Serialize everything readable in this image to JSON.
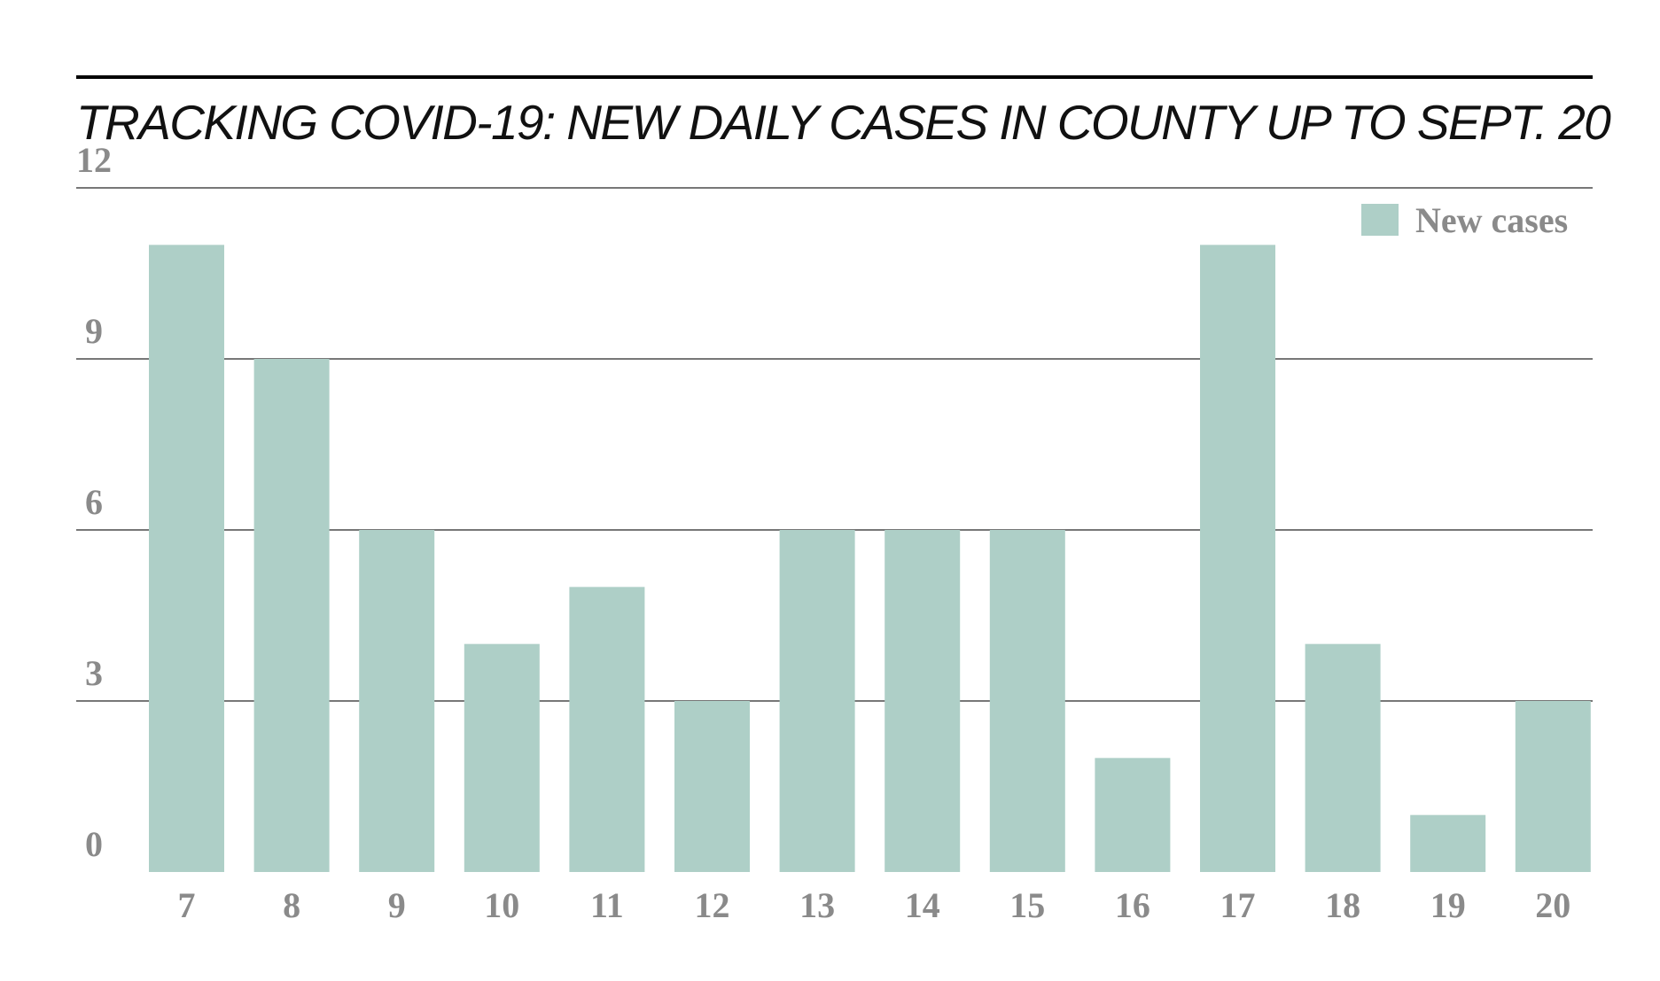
{
  "chart_data": {
    "type": "bar",
    "title": "TRACKING COVID-19: NEW DAILY CASES IN COUNTY UP TO SEPT. 20",
    "xlabel": "",
    "ylabel": "",
    "categories": [
      "7",
      "8",
      "9",
      "10",
      "11",
      "12",
      "13",
      "14",
      "15",
      "16",
      "17",
      "18",
      "19",
      "20"
    ],
    "series": [
      {
        "name": "New cases",
        "values": [
          11,
          9,
          6,
          4,
          5,
          3,
          6,
          6,
          6,
          2,
          11,
          4,
          1,
          3
        ],
        "color": "#aecfc7"
      }
    ],
    "ylim": [
      0,
      12
    ],
    "yticks": [
      "0",
      "3",
      "6",
      "9",
      "12"
    ],
    "grid": true,
    "legend_position": "top-right",
    "colors": {
      "bar": "#aecfc7",
      "tick_text": "#8a8a8a",
      "gridline": "#4a4a4a",
      "title": "#111111"
    }
  }
}
